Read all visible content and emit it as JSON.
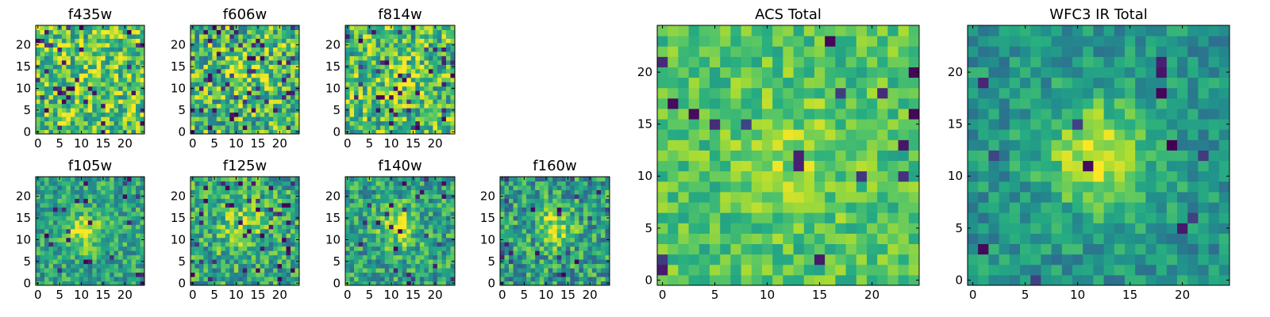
{
  "chart_data": [
    {
      "type": "heatmap",
      "title": "f435w",
      "xticks": [
        "0",
        "5",
        "10",
        "15",
        "20"
      ],
      "yticks": [
        "0",
        "5",
        "10",
        "15",
        "20"
      ],
      "xlim": [
        -0.5,
        24.5
      ],
      "ylim": [
        -0.5,
        24.5
      ],
      "grid_size": [
        25,
        25
      ],
      "colormap": "viridis",
      "appearance": "noisy field, no clear central source"
    },
    {
      "type": "heatmap",
      "title": "f606w",
      "xticks": [
        "0",
        "5",
        "10",
        "15",
        "20"
      ],
      "yticks": [
        "0",
        "5",
        "10",
        "15",
        "20"
      ],
      "xlim": [
        -0.5,
        24.5
      ],
      "ylim": [
        -0.5,
        24.5
      ],
      "grid_size": [
        25,
        25
      ],
      "colormap": "viridis",
      "appearance": "noisy field, faint central source"
    },
    {
      "type": "heatmap",
      "title": "f814w",
      "xticks": [
        "0",
        "5",
        "10",
        "15",
        "20"
      ],
      "yticks": [
        "0",
        "5",
        "10",
        "15",
        "20"
      ],
      "xlim": [
        -0.5,
        24.5
      ],
      "ylim": [
        -0.5,
        24.5
      ],
      "grid_size": [
        25,
        25
      ],
      "colormap": "viridis",
      "appearance": "noisy field, faint central source"
    },
    {
      "type": "heatmap",
      "title": "f105w",
      "xticks": [
        "0",
        "5",
        "10",
        "15",
        "20"
      ],
      "yticks": [
        "0",
        "5",
        "10",
        "15",
        "20"
      ],
      "xlim": [
        -0.5,
        24.5
      ],
      "ylim": [
        -0.5,
        24.5
      ],
      "grid_size": [
        25,
        25
      ],
      "colormap": "viridis",
      "appearance": "bright central source near (11, 12)"
    },
    {
      "type": "heatmap",
      "title": "f125w",
      "xticks": [
        "0",
        "5",
        "10",
        "15",
        "20"
      ],
      "yticks": [
        "0",
        "5",
        "10",
        "15",
        "20"
      ],
      "xlim": [
        -0.5,
        24.5
      ],
      "ylim": [
        -0.5,
        24.5
      ],
      "grid_size": [
        25,
        25
      ],
      "colormap": "viridis",
      "appearance": "diffuse central source"
    },
    {
      "type": "heatmap",
      "title": "f140w",
      "xticks": [
        "0",
        "5",
        "10",
        "15",
        "20"
      ],
      "yticks": [
        "0",
        "5",
        "10",
        "15",
        "20"
      ],
      "xlim": [
        -0.5,
        24.5
      ],
      "ylim": [
        -0.5,
        24.5
      ],
      "grid_size": [
        25,
        25
      ],
      "colormap": "viridis",
      "appearance": "bright central source near (12, 13)"
    },
    {
      "type": "heatmap",
      "title": "f160w",
      "xticks": [
        "0",
        "5",
        "10",
        "15",
        "20"
      ],
      "yticks": [
        "0",
        "5",
        "10",
        "15",
        "20"
      ],
      "xlim": [
        -0.5,
        24.5
      ],
      "ylim": [
        -0.5,
        24.5
      ],
      "grid_size": [
        25,
        25
      ],
      "colormap": "viridis",
      "appearance": "bright central source near (12, 13)"
    },
    {
      "type": "heatmap",
      "title": "ACS Total",
      "xticks": [
        "0",
        "5",
        "10",
        "15",
        "20"
      ],
      "yticks": [
        "0",
        "5",
        "10",
        "15",
        "20"
      ],
      "xlim": [
        -0.5,
        24.5
      ],
      "ylim": [
        -0.5,
        24.5
      ],
      "grid_size": [
        25,
        25
      ],
      "colormap": "viridis",
      "appearance": "faint source centered near (12, 12)"
    },
    {
      "type": "heatmap",
      "title": "WFC3 IR Total",
      "xticks": [
        "0",
        "5",
        "10",
        "15",
        "20"
      ],
      "yticks": [
        "0",
        "5",
        "10",
        "15",
        "20"
      ],
      "xlim": [
        -0.5,
        24.5
      ],
      "ylim": [
        -0.5,
        24.5
      ],
      "grid_size": [
        25,
        25
      ],
      "colormap": "viridis",
      "appearance": "bright extended source centered near (12, 12)"
    }
  ]
}
